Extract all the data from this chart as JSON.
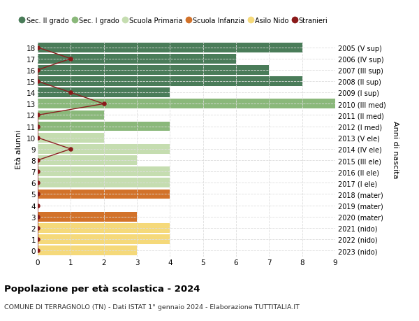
{
  "ages": [
    18,
    17,
    16,
    15,
    14,
    13,
    12,
    11,
    10,
    9,
    8,
    7,
    6,
    5,
    4,
    3,
    2,
    1,
    0
  ],
  "years": [
    "2005 (V sup)",
    "2006 (IV sup)",
    "2007 (III sup)",
    "2008 (II sup)",
    "2009 (I sup)",
    "2010 (III med)",
    "2011 (II med)",
    "2012 (I med)",
    "2013 (V ele)",
    "2014 (IV ele)",
    "2015 (III ele)",
    "2016 (II ele)",
    "2017 (I ele)",
    "2018 (mater)",
    "2019 (mater)",
    "2020 (mater)",
    "2021 (nido)",
    "2022 (nido)",
    "2023 (nido)"
  ],
  "values": [
    8,
    6,
    7,
    8,
    4,
    9,
    2,
    4,
    2,
    4,
    3,
    4,
    4,
    4,
    0,
    3,
    4,
    4,
    3
  ],
  "categories": [
    "Sec. II grado",
    "Sec. II grado",
    "Sec. II grado",
    "Sec. II grado",
    "Sec. II grado",
    "Sec. I grado",
    "Sec. I grado",
    "Sec. I grado",
    "Scuola Primaria",
    "Scuola Primaria",
    "Scuola Primaria",
    "Scuola Primaria",
    "Scuola Primaria",
    "Scuola Infanzia",
    "Scuola Infanzia",
    "Scuola Infanzia",
    "Asilo Nido",
    "Asilo Nido",
    "Asilo Nido"
  ],
  "stranieri": [
    0,
    1,
    0,
    0,
    1,
    2,
    0,
    0,
    0,
    1,
    0,
    0,
    0,
    0,
    0,
    0,
    0,
    0,
    0
  ],
  "colors": {
    "Sec. II grado": "#4a7c59",
    "Sec. I grado": "#8ab87a",
    "Scuola Primaria": "#c5ddb0",
    "Scuola Infanzia": "#d2722a",
    "Asilo Nido": "#f5d97a"
  },
  "stranieri_color": "#8b1a1a",
  "stranieri_line_color": "#8b2020",
  "xlim": [
    0,
    9
  ],
  "title": "Popolazione per età scolastica - 2024",
  "subtitle": "COMUNE DI TERRAGNOLO (TN) - Dati ISTAT 1° gennaio 2024 - Elaborazione TUTTITALIA.IT",
  "ylabel": "Età alunni",
  "ylabel2": "Anni di nascita",
  "bg_color": "#ffffff",
  "grid_color": "#dddddd",
  "bar_height": 0.85,
  "legend_labels": [
    "Sec. II grado",
    "Sec. I grado",
    "Scuola Primaria",
    "Scuola Infanzia",
    "Asilo Nido",
    "Stranieri"
  ],
  "legend_colors": [
    "#4a7c59",
    "#8ab87a",
    "#c5ddb0",
    "#d2722a",
    "#f5d97a",
    "#8b1a1a"
  ]
}
